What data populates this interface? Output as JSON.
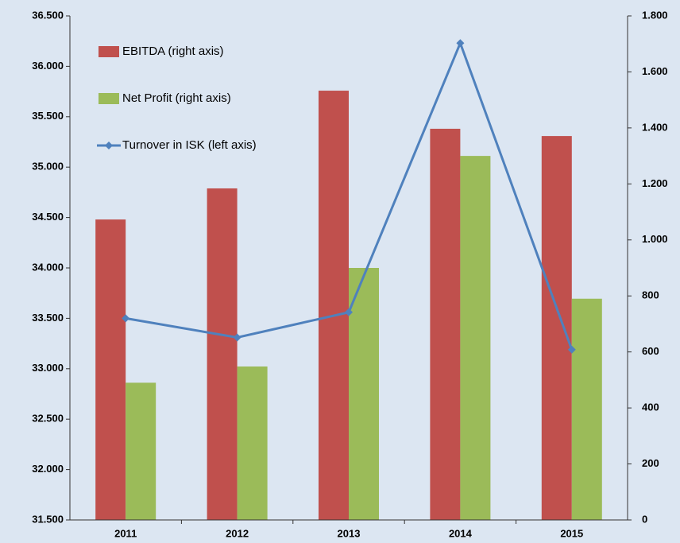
{
  "chart_data": {
    "type": "bar",
    "categories": [
      "2011",
      "2012",
      "2013",
      "2014",
      "2015"
    ],
    "series": [
      {
        "name": "EBITDA (right axis)",
        "color": "#c0504d",
        "axis": "y2",
        "values": [
          1073,
          1184,
          1533,
          1397,
          1371
        ]
      },
      {
        "name": "Net Profit (right axis)",
        "color": "#9bbb59",
        "axis": "y2",
        "values": [
          490,
          548,
          900,
          1300,
          790
        ]
      },
      {
        "name": "Turnover in ISK (left axis)",
        "color": "#4f81bd",
        "axis": "y",
        "type": "line",
        "values": [
          33500,
          33310,
          33560,
          36230,
          33190
        ]
      }
    ],
    "ylim": [
      31500,
      36500
    ],
    "yticks": [
      {
        "value": 31500,
        "label": "31.500"
      },
      {
        "value": 32000,
        "label": "32.000"
      },
      {
        "value": 32500,
        "label": "32.500"
      },
      {
        "value": 33000,
        "label": "33.000"
      },
      {
        "value": 33500,
        "label": "33.500"
      },
      {
        "value": 34000,
        "label": "34.000"
      },
      {
        "value": 34500,
        "label": "34.500"
      },
      {
        "value": 35000,
        "label": "35.000"
      },
      {
        "value": 35500,
        "label": "35.500"
      },
      {
        "value": 36000,
        "label": "36.000"
      },
      {
        "value": 36500,
        "label": "36.500"
      }
    ],
    "y2lim": [
      0,
      1800
    ],
    "y2ticks": [
      0,
      200,
      400,
      600,
      800,
      {
        "value": 1000,
        "label": "1.000"
      },
      {
        "value": 1200,
        "label": "1.200"
      },
      {
        "value": 1400,
        "label": "1.400"
      },
      {
        "value": 1600,
        "label": "1.600"
      },
      {
        "value": 1800,
        "label": "1.800"
      }
    ],
    "legend": "upper left"
  }
}
